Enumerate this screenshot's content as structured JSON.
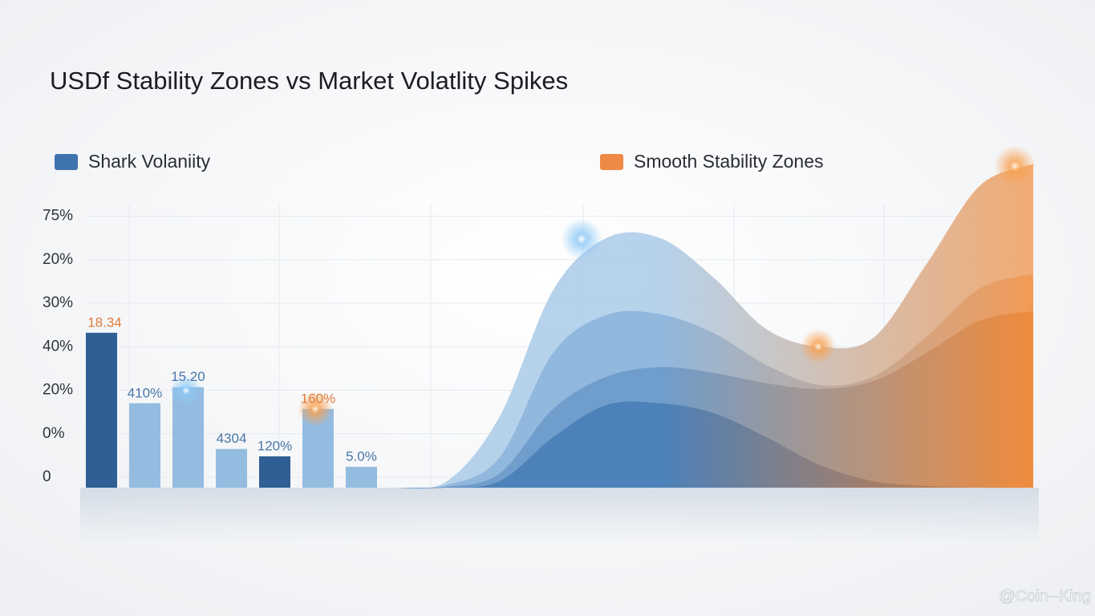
{
  "title": "USDf Stability Zones vs Market Volatlity Spikes",
  "watermark": "@Coin--King",
  "legend": [
    {
      "name": "Shark Volaniity",
      "color": "#3f73ad"
    },
    {
      "name": "Smooth Stability Zones",
      "color": "#ee8a45"
    }
  ],
  "chart_data": [
    {
      "type": "bar",
      "categories": [
        null,
        null,
        null,
        null,
        null,
        null,
        null
      ],
      "values": [
        3.32,
        1.7,
        2.07,
        0.65,
        0.48,
        1.57,
        0.24
      ],
      "colors": [
        "#2f5f95",
        "#94bce0",
        "#94bce0",
        "#94bce0",
        "#2f5f95",
        "#94bce0",
        "#94bce0"
      ],
      "annotations": [
        {
          "text": "18.34",
          "color": "#e07b3a"
        },
        {
          "text": "410%",
          "color": "#4a76a8"
        },
        {
          "text": "15.20",
          "color": "#4a76a8"
        },
        {
          "text": "4304",
          "color": "#4a76a8"
        },
        {
          "text": "120%",
          "color": "#4a76a8"
        },
        {
          "text": "160%",
          "color": "#e07b3a"
        },
        {
          "text": "5.0%",
          "color": "#4a76a8"
        }
      ],
      "ylim": [
        -0.24,
        7.3
      ],
      "yticks": [
        {
          "value": 0,
          "label": "0"
        },
        {
          "value": 1,
          "label": "0%"
        },
        {
          "value": 2,
          "label": "20%"
        },
        {
          "value": 3,
          "label": "40%"
        },
        {
          "value": 4,
          "label": "30%"
        },
        {
          "value": 5,
          "label": "20%"
        },
        {
          "value": 6,
          "label": "75%"
        }
      ],
      "grid": true
    },
    {
      "type": "area",
      "x": [
        0,
        1,
        2,
        3,
        4,
        5,
        6,
        7,
        8,
        9,
        10,
        11,
        12
      ],
      "xlim": [
        0,
        12
      ],
      "ylim": [
        -0.24,
        7.3
      ],
      "series": [
        {
          "color": "#b3d0ea",
          "color_end": "#f2a76c",
          "values": [
            -0.24,
            -0.1,
            1.4,
            4.3,
            5.5,
            5.5,
            4.6,
            3.4,
            3.0,
            3.2,
            4.9,
            6.7,
            7.2
          ]
        },
        {
          "color": "#8fb6dc",
          "color_end": "#f39a55",
          "values": [
            -0.24,
            -0.18,
            0.46,
            2.86,
            3.73,
            3.75,
            3.32,
            2.58,
            2.12,
            2.31,
            3.23,
            4.34,
            4.67
          ]
        },
        {
          "color": "#6e9ccb",
          "color_end": "#f08a3a",
          "values": [
            -0.24,
            -0.22,
            0.09,
            1.57,
            2.31,
            2.53,
            2.4,
            2.16,
            2.03,
            2.21,
            2.86,
            3.6,
            3.82
          ]
        },
        {
          "color": "#4a80b8",
          "color_end": "#e57a2e",
          "values": [
            -0.24,
            -0.24,
            -0.09,
            0.92,
            1.66,
            1.7,
            1.48,
            0.92,
            0.28,
            -0.09,
            -0.2,
            -0.24,
            -0.24
          ]
        }
      ]
    }
  ]
}
